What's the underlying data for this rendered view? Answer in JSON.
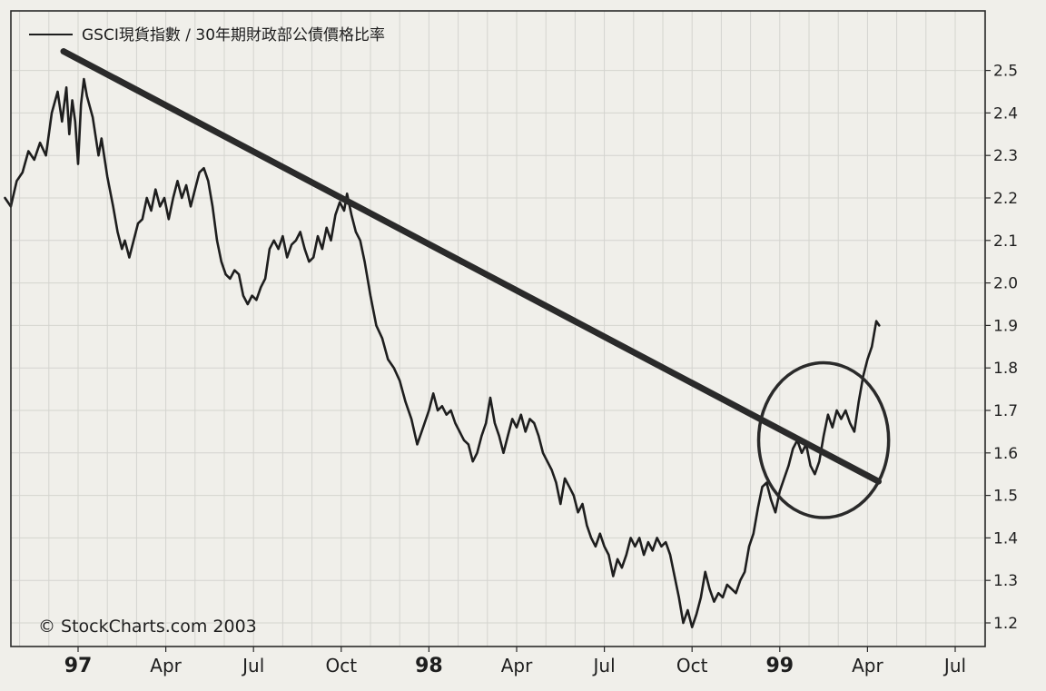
{
  "chart_data": {
    "type": "line",
    "legend": {
      "label": "GSCI現貨指數 / 30年期財政部公債價格比率",
      "placement": "top-left"
    },
    "copyright": "© StockCharts.com 2003",
    "grid": true,
    "ylim": [
      1.15,
      2.62
    ],
    "y_ticks": [
      "1.2",
      "1.3",
      "1.4",
      "1.5",
      "1.6",
      "1.7",
      "1.8",
      "1.9",
      "2.0",
      "2.1",
      "2.2",
      "2.3",
      "2.4",
      "2.5"
    ],
    "x_ticks": [
      {
        "label": "97",
        "month": 0,
        "major": true
      },
      {
        "label": "Apr",
        "month": 3,
        "major": false
      },
      {
        "label": "Jul",
        "month": 6,
        "major": false
      },
      {
        "label": "Oct",
        "month": 9,
        "major": false
      },
      {
        "label": "98",
        "month": 12,
        "major": true
      },
      {
        "label": "Apr",
        "month": 15,
        "major": false
      },
      {
        "label": "Jul",
        "month": 18,
        "major": false
      },
      {
        "label": "Oct",
        "month": 21,
        "major": false
      },
      {
        "label": "99",
        "month": 24,
        "major": true
      },
      {
        "label": "Apr",
        "month": 27,
        "major": false
      },
      {
        "label": "Jul",
        "month": 30,
        "major": false
      }
    ],
    "series": [
      {
        "values": [
          [
            -2.5,
            2.2
          ],
          [
            -2.3,
            2.18
          ],
          [
            -2.1,
            2.24
          ],
          [
            -1.9,
            2.26
          ],
          [
            -1.7,
            2.31
          ],
          [
            -1.5,
            2.29
          ],
          [
            -1.3,
            2.33
          ],
          [
            -1.1,
            2.3
          ],
          [
            -0.9,
            2.4
          ],
          [
            -0.7,
            2.45
          ],
          [
            -0.55,
            2.38
          ],
          [
            -0.4,
            2.46
          ],
          [
            -0.3,
            2.35
          ],
          [
            -0.2,
            2.43
          ],
          [
            -0.1,
            2.38
          ],
          [
            0.0,
            2.28
          ],
          [
            0.1,
            2.42
          ],
          [
            0.2,
            2.48
          ],
          [
            0.3,
            2.44
          ],
          [
            0.5,
            2.39
          ],
          [
            0.7,
            2.3
          ],
          [
            0.8,
            2.34
          ],
          [
            1.0,
            2.25
          ],
          [
            1.2,
            2.18
          ],
          [
            1.35,
            2.12
          ],
          [
            1.5,
            2.08
          ],
          [
            1.6,
            2.1
          ],
          [
            1.75,
            2.06
          ],
          [
            1.9,
            2.1
          ],
          [
            2.05,
            2.14
          ],
          [
            2.2,
            2.15
          ],
          [
            2.35,
            2.2
          ],
          [
            2.5,
            2.17
          ],
          [
            2.65,
            2.22
          ],
          [
            2.8,
            2.18
          ],
          [
            2.95,
            2.2
          ],
          [
            3.1,
            2.15
          ],
          [
            3.25,
            2.2
          ],
          [
            3.4,
            2.24
          ],
          [
            3.55,
            2.2
          ],
          [
            3.7,
            2.23
          ],
          [
            3.85,
            2.18
          ],
          [
            4.0,
            2.22
          ],
          [
            4.15,
            2.26
          ],
          [
            4.3,
            2.27
          ],
          [
            4.45,
            2.24
          ],
          [
            4.6,
            2.18
          ],
          [
            4.75,
            2.1
          ],
          [
            4.9,
            2.05
          ],
          [
            5.05,
            2.02
          ],
          [
            5.2,
            2.01
          ],
          [
            5.35,
            2.03
          ],
          [
            5.5,
            2.02
          ],
          [
            5.65,
            1.97
          ],
          [
            5.8,
            1.95
          ],
          [
            5.95,
            1.97
          ],
          [
            6.1,
            1.96
          ],
          [
            6.25,
            1.99
          ],
          [
            6.4,
            2.01
          ],
          [
            6.55,
            2.08
          ],
          [
            6.7,
            2.1
          ],
          [
            6.85,
            2.08
          ],
          [
            7.0,
            2.11
          ],
          [
            7.15,
            2.06
          ],
          [
            7.3,
            2.09
          ],
          [
            7.45,
            2.1
          ],
          [
            7.6,
            2.12
          ],
          [
            7.75,
            2.08
          ],
          [
            7.9,
            2.05
          ],
          [
            8.05,
            2.06
          ],
          [
            8.2,
            2.11
          ],
          [
            8.35,
            2.08
          ],
          [
            8.5,
            2.13
          ],
          [
            8.65,
            2.1
          ],
          [
            8.8,
            2.16
          ],
          [
            8.95,
            2.19
          ],
          [
            9.1,
            2.17
          ],
          [
            9.2,
            2.21
          ],
          [
            9.35,
            2.16
          ],
          [
            9.5,
            2.12
          ],
          [
            9.65,
            2.1
          ],
          [
            9.8,
            2.05
          ],
          [
            10.0,
            1.97
          ],
          [
            10.2,
            1.9
          ],
          [
            10.4,
            1.87
          ],
          [
            10.6,
            1.82
          ],
          [
            10.8,
            1.8
          ],
          [
            11.0,
            1.77
          ],
          [
            11.2,
            1.72
          ],
          [
            11.4,
            1.68
          ],
          [
            11.6,
            1.62
          ],
          [
            11.8,
            1.66
          ],
          [
            12.0,
            1.7
          ],
          [
            12.15,
            1.74
          ],
          [
            12.3,
            1.7
          ],
          [
            12.45,
            1.71
          ],
          [
            12.6,
            1.69
          ],
          [
            12.75,
            1.7
          ],
          [
            12.9,
            1.67
          ],
          [
            13.05,
            1.65
          ],
          [
            13.2,
            1.63
          ],
          [
            13.35,
            1.62
          ],
          [
            13.5,
            1.58
          ],
          [
            13.65,
            1.6
          ],
          [
            13.8,
            1.64
          ],
          [
            13.95,
            1.67
          ],
          [
            14.1,
            1.73
          ],
          [
            14.25,
            1.67
          ],
          [
            14.4,
            1.64
          ],
          [
            14.55,
            1.6
          ],
          [
            14.7,
            1.64
          ],
          [
            14.85,
            1.68
          ],
          [
            15.0,
            1.66
          ],
          [
            15.15,
            1.69
          ],
          [
            15.3,
            1.65
          ],
          [
            15.45,
            1.68
          ],
          [
            15.6,
            1.67
          ],
          [
            15.75,
            1.64
          ],
          [
            15.9,
            1.6
          ],
          [
            16.05,
            1.58
          ],
          [
            16.2,
            1.56
          ],
          [
            16.35,
            1.53
          ],
          [
            16.5,
            1.48
          ],
          [
            16.65,
            1.54
          ],
          [
            16.8,
            1.52
          ],
          [
            16.95,
            1.5
          ],
          [
            17.1,
            1.46
          ],
          [
            17.25,
            1.48
          ],
          [
            17.4,
            1.43
          ],
          [
            17.55,
            1.4
          ],
          [
            17.7,
            1.38
          ],
          [
            17.85,
            1.41
          ],
          [
            18.0,
            1.38
          ],
          [
            18.15,
            1.36
          ],
          [
            18.3,
            1.31
          ],
          [
            18.45,
            1.35
          ],
          [
            18.6,
            1.33
          ],
          [
            18.75,
            1.36
          ],
          [
            18.9,
            1.4
          ],
          [
            19.05,
            1.38
          ],
          [
            19.2,
            1.4
          ],
          [
            19.35,
            1.36
          ],
          [
            19.5,
            1.39
          ],
          [
            19.65,
            1.37
          ],
          [
            19.8,
            1.4
          ],
          [
            19.95,
            1.38
          ],
          [
            20.1,
            1.39
          ],
          [
            20.25,
            1.36
          ],
          [
            20.4,
            1.31
          ],
          [
            20.55,
            1.26
          ],
          [
            20.7,
            1.2
          ],
          [
            20.85,
            1.23
          ],
          [
            21.0,
            1.19
          ],
          [
            21.15,
            1.22
          ],
          [
            21.3,
            1.26
          ],
          [
            21.45,
            1.32
          ],
          [
            21.6,
            1.28
          ],
          [
            21.75,
            1.25
          ],
          [
            21.9,
            1.27
          ],
          [
            22.05,
            1.26
          ],
          [
            22.2,
            1.29
          ],
          [
            22.35,
            1.28
          ],
          [
            22.5,
            1.27
          ],
          [
            22.65,
            1.3
          ],
          [
            22.8,
            1.32
          ],
          [
            22.95,
            1.38
          ],
          [
            23.1,
            1.41
          ],
          [
            23.25,
            1.47
          ],
          [
            23.4,
            1.52
          ],
          [
            23.55,
            1.53
          ],
          [
            23.7,
            1.49
          ],
          [
            23.85,
            1.46
          ],
          [
            24.0,
            1.51
          ],
          [
            24.15,
            1.54
          ],
          [
            24.3,
            1.57
          ],
          [
            24.45,
            1.61
          ],
          [
            24.6,
            1.63
          ],
          [
            24.75,
            1.6
          ],
          [
            24.9,
            1.62
          ],
          [
            25.05,
            1.57
          ],
          [
            25.2,
            1.55
          ],
          [
            25.35,
            1.58
          ],
          [
            25.5,
            1.64
          ],
          [
            25.65,
            1.69
          ],
          [
            25.8,
            1.66
          ],
          [
            25.95,
            1.7
          ],
          [
            26.1,
            1.68
          ],
          [
            26.25,
            1.7
          ],
          [
            26.4,
            1.67
          ],
          [
            26.55,
            1.65
          ],
          [
            26.7,
            1.72
          ],
          [
            26.85,
            1.78
          ],
          [
            27.0,
            1.82
          ],
          [
            27.15,
            1.85
          ],
          [
            27.3,
            1.91
          ],
          [
            27.4,
            1.9
          ]
        ]
      }
    ],
    "annotations": {
      "trendline": {
        "from": [
          0.0,
          2.53
        ],
        "to": [
          27.5,
          1.55
        ]
      },
      "circle": {
        "center": [
          25.5,
          1.63
        ],
        "radius_months": 1.9,
        "radius_y": 0.135
      }
    },
    "colors": {
      "background": "#f0efea",
      "grid": "#d4d4cf",
      "line": "#1e1e1e",
      "annotation": "#2a2a2a"
    }
  }
}
